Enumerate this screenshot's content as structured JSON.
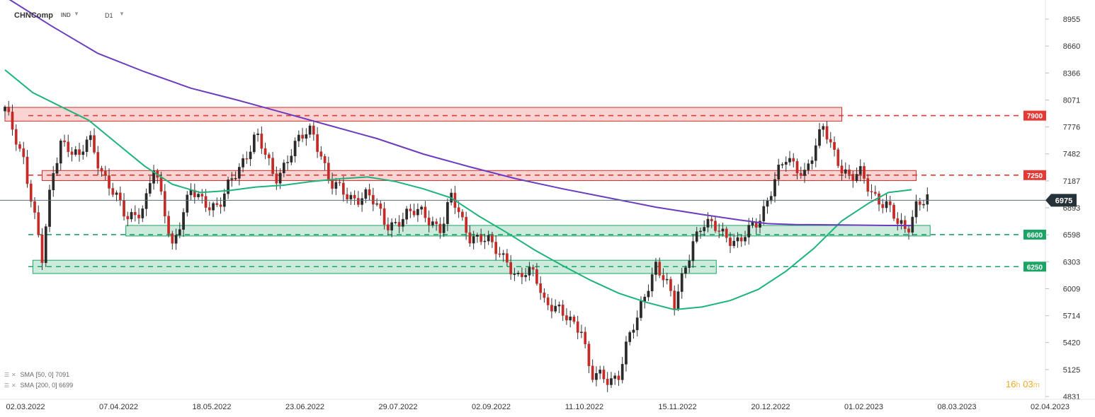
{
  "header": {
    "symbol": "CHNComp",
    "market": "IND",
    "timeframe": "D1"
  },
  "indicators": [
    {
      "label": "SMA",
      "params": "[50, 0]",
      "value": "7091",
      "color": "#1db37b"
    },
    {
      "label": "SMA",
      "params": "[200, 0]",
      "value": "6699",
      "color": "#6a3dbf"
    }
  ],
  "timer": {
    "hours": "16",
    "h_unit": "h",
    "minutes": "03",
    "m_unit": "m"
  },
  "chart_data": {
    "type": "candlestick",
    "title": "",
    "xlabel": "",
    "ylabel": "",
    "ylim": [
      4831,
      9250
    ],
    "y_ticks": [
      8955,
      8660,
      8366,
      8071,
      7776,
      7482,
      7187,
      6893,
      6598,
      6303,
      6009,
      5714,
      5420,
      5125,
      4831
    ],
    "x_ticks": [
      "02.03.2022",
      "07.04.2022",
      "18.05.2022",
      "23.06.2022",
      "29.07.2022",
      "02.09.2022",
      "11.10.2022",
      "15.11.2022",
      "20.12.2022",
      "01.02.2023",
      "08.03.2023",
      "02.04.2023"
    ],
    "current_price": {
      "value": 6975,
      "label": "6975"
    },
    "levels": [
      {
        "value": 7900,
        "label": "7900",
        "color": "#e53935"
      },
      {
        "value": 7250,
        "label": "7250",
        "color": "#e53935"
      },
      {
        "value": 6600,
        "label": "6600",
        "color": "#1aa564"
      },
      {
        "value": 6250,
        "label": "6250",
        "color": "#1aa564"
      }
    ],
    "zones": [
      {
        "low": 7840,
        "high": 7990,
        "from_index": 0,
        "to_index": 90,
        "color": "red"
      },
      {
        "low": 7190,
        "high": 7300,
        "from_index": 4,
        "to_index": 98,
        "color": "red"
      },
      {
        "low": 6585,
        "high": 6700,
        "from_index": 13,
        "to_index": 99.5,
        "color": "green"
      },
      {
        "low": 6175,
        "high": 6320,
        "from_index": 3,
        "to_index": 76.5,
        "color": "green"
      }
    ],
    "anchors": [
      {
        "i": 0,
        "c": 7950
      },
      {
        "i": 2,
        "c": 7450
      },
      {
        "i": 3,
        "c": 6900
      },
      {
        "i": 4,
        "c": 6300
      },
      {
        "i": 5,
        "c": 7200
      },
      {
        "i": 6,
        "c": 7650
      },
      {
        "i": 8,
        "c": 7400
      },
      {
        "i": 9,
        "c": 7700
      },
      {
        "i": 11,
        "c": 7150
      },
      {
        "i": 13,
        "c": 6800
      },
      {
        "i": 15,
        "c": 6900
      },
      {
        "i": 16,
        "c": 7300
      },
      {
        "i": 17,
        "c": 6950
      },
      {
        "i": 18,
        "c": 6500
      },
      {
        "i": 20,
        "c": 7050
      },
      {
        "i": 23,
        "c": 6900
      },
      {
        "i": 25,
        "c": 7300
      },
      {
        "i": 27,
        "c": 7700
      },
      {
        "i": 29,
        "c": 7200
      },
      {
        "i": 31,
        "c": 7550
      },
      {
        "i": 33,
        "c": 7750
      },
      {
        "i": 34,
        "c": 7500
      },
      {
        "i": 35,
        "c": 7150
      },
      {
        "i": 37,
        "c": 7000
      },
      {
        "i": 39,
        "c": 7050
      },
      {
        "i": 41,
        "c": 6700
      },
      {
        "i": 43,
        "c": 6800
      },
      {
        "i": 45,
        "c": 6850
      },
      {
        "i": 47,
        "c": 6650
      },
      {
        "i": 48,
        "c": 7000
      },
      {
        "i": 50,
        "c": 6600
      },
      {
        "i": 52,
        "c": 6500
      },
      {
        "i": 54,
        "c": 6350
      },
      {
        "i": 55,
        "c": 6100
      },
      {
        "i": 57,
        "c": 6200
      },
      {
        "i": 58,
        "c": 5900
      },
      {
        "i": 60,
        "c": 5700
      },
      {
        "i": 62,
        "c": 5600
      },
      {
        "i": 63,
        "c": 5050
      },
      {
        "i": 65,
        "c": 5000
      },
      {
        "i": 66,
        "c": 5100
      },
      {
        "i": 67,
        "c": 5450
      },
      {
        "i": 68,
        "c": 5650
      },
      {
        "i": 69,
        "c": 6000
      },
      {
        "i": 70,
        "c": 6300
      },
      {
        "i": 71,
        "c": 6100
      },
      {
        "i": 72,
        "c": 5800
      },
      {
        "i": 73,
        "c": 6200
      },
      {
        "i": 74,
        "c": 6550
      },
      {
        "i": 75,
        "c": 6700
      },
      {
        "i": 77,
        "c": 6650
      },
      {
        "i": 79,
        "c": 6500
      },
      {
        "i": 81,
        "c": 6750
      },
      {
        "i": 82,
        "c": 7000
      },
      {
        "i": 83,
        "c": 7250
      },
      {
        "i": 84,
        "c": 7400
      },
      {
        "i": 86,
        "c": 7300
      },
      {
        "i": 87,
        "c": 7500
      },
      {
        "i": 88,
        "c": 7750
      },
      {
        "i": 89,
        "c": 7550
      },
      {
        "i": 90,
        "c": 7350
      },
      {
        "i": 91,
        "c": 7200
      },
      {
        "i": 92,
        "c": 7250
      },
      {
        "i": 93,
        "c": 7100
      },
      {
        "i": 95,
        "c": 6900
      },
      {
        "i": 96,
        "c": 6700
      },
      {
        "i": 97,
        "c": 6650
      },
      {
        "i": 98,
        "c": 6950
      },
      {
        "i": 98.5,
        "c": 6975
      }
    ],
    "series": [
      {
        "name": "SMA [50, 0]",
        "color": "#1db37b",
        "points": [
          [
            0,
            8400
          ],
          [
            3,
            8150
          ],
          [
            6,
            8000
          ],
          [
            9,
            7850
          ],
          [
            12,
            7600
          ],
          [
            15,
            7350
          ],
          [
            18,
            7150
          ],
          [
            21,
            7060
          ],
          [
            24,
            7080
          ],
          [
            27,
            7120
          ],
          [
            30,
            7140
          ],
          [
            33,
            7180
          ],
          [
            36,
            7210
          ],
          [
            39,
            7230
          ],
          [
            42,
            7180
          ],
          [
            45,
            7100
          ],
          [
            48,
            7000
          ],
          [
            51,
            6800
          ],
          [
            54,
            6620
          ],
          [
            57,
            6430
          ],
          [
            60,
            6260
          ],
          [
            63,
            6100
          ],
          [
            66,
            5960
          ],
          [
            69,
            5860
          ],
          [
            72,
            5780
          ],
          [
            75,
            5810
          ],
          [
            78,
            5880
          ],
          [
            81,
            6000
          ],
          [
            84,
            6200
          ],
          [
            87,
            6450
          ],
          [
            90,
            6750
          ],
          [
            93,
            6950
          ],
          [
            95,
            7060
          ],
          [
            97.5,
            7091
          ]
        ]
      },
      {
        "name": "SMA [200, 0]",
        "color": "#6a3dbf",
        "points": [
          [
            0,
            9200
          ],
          [
            5,
            8880
          ],
          [
            10,
            8580
          ],
          [
            15,
            8380
          ],
          [
            20,
            8200
          ],
          [
            25,
            8070
          ],
          [
            30,
            7930
          ],
          [
            35,
            7790
          ],
          [
            40,
            7650
          ],
          [
            45,
            7480
          ],
          [
            50,
            7340
          ],
          [
            55,
            7210
          ],
          [
            60,
            7100
          ],
          [
            65,
            7000
          ],
          [
            70,
            6900
          ],
          [
            75,
            6820
          ],
          [
            79,
            6760
          ],
          [
            82,
            6720
          ],
          [
            85,
            6710
          ],
          [
            90,
            6705
          ],
          [
            95,
            6700
          ],
          [
            97.5,
            6699
          ]
        ]
      }
    ]
  }
}
